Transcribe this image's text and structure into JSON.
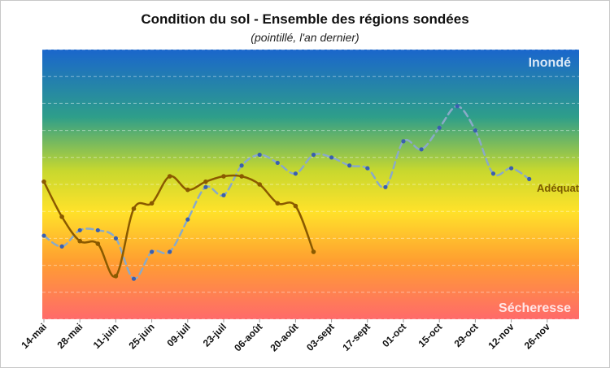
{
  "chart_data": {
    "type": "line",
    "title": "Condition du sol - Ensemble des régions sondées",
    "subtitle": "(pointillé, l'an dernier)",
    "ylim": [
      0,
      100
    ],
    "y_ticks": [
      0,
      10,
      20,
      30,
      40,
      50,
      60,
      70,
      80,
      90,
      100
    ],
    "x_tick_labels": [
      "14-mai",
      "28-mai",
      "11-juin",
      "25-juin",
      "09-juil",
      "23-juil",
      "06-août",
      "20-août",
      "03-sept",
      "17-sept",
      "01-oct",
      "15-oct",
      "29-oct",
      "12-nov",
      "26-nov"
    ],
    "background_gradient": [
      "#1a66cc",
      "#2e9e8a",
      "#c8d82e",
      "#ffe22a",
      "#ffa030",
      "#ff6a6a"
    ],
    "zone_labels": [
      {
        "text": "Inondé",
        "color": "#d9e8f5"
      },
      {
        "text": "Adéquat",
        "color": "#7a5a00"
      },
      {
        "text": "Sécheresse",
        "color": "#ffe6e6"
      }
    ],
    "grid": true,
    "series": [
      {
        "style": "solid",
        "color": "#8a5a00",
        "points": [
          [
            "14-mai",
            51
          ],
          [
            "21-mai",
            38
          ],
          [
            "28-mai",
            29
          ],
          [
            "04-juin",
            28
          ],
          [
            "11-juin",
            16
          ],
          [
            "18-juin",
            41
          ],
          [
            "25-juin",
            43
          ],
          [
            "02-juil",
            53
          ],
          [
            "09-juil",
            48
          ],
          [
            "16-juil",
            51
          ],
          [
            "23-juil",
            53
          ],
          [
            "30-juil",
            53
          ],
          [
            "06-août",
            50
          ],
          [
            "13-août",
            43
          ],
          [
            "20-août",
            42
          ],
          [
            "27-août",
            25
          ]
        ]
      },
      {
        "style": "dashed",
        "color": "#8aaac8",
        "marker_color": "#3a5fb0",
        "points": [
          [
            "14-mai",
            31
          ],
          [
            "21-mai",
            27
          ],
          [
            "28-mai",
            33
          ],
          [
            "04-juin",
            33
          ],
          [
            "11-juin",
            30
          ],
          [
            "18-juin",
            15
          ],
          [
            "25-juin",
            25
          ],
          [
            "02-juil",
            25
          ],
          [
            "09-juil",
            37
          ],
          [
            "16-juil",
            49
          ],
          [
            "23-juil",
            46
          ],
          [
            "30-juil",
            57
          ],
          [
            "06-août",
            61
          ],
          [
            "13-août",
            58
          ],
          [
            "20-août",
            54
          ],
          [
            "27-août",
            61
          ],
          [
            "03-sept",
            60
          ],
          [
            "10-sept",
            57
          ],
          [
            "17-sept",
            56
          ],
          [
            "24-sept",
            49
          ],
          [
            "01-oct",
            66
          ],
          [
            "08-oct",
            63
          ],
          [
            "15-oct",
            71
          ],
          [
            "22-oct",
            79
          ],
          [
            "29-oct",
            70
          ],
          [
            "05-nov",
            54
          ],
          [
            "12-nov",
            56
          ],
          [
            "19-nov",
            52
          ]
        ]
      }
    ]
  }
}
